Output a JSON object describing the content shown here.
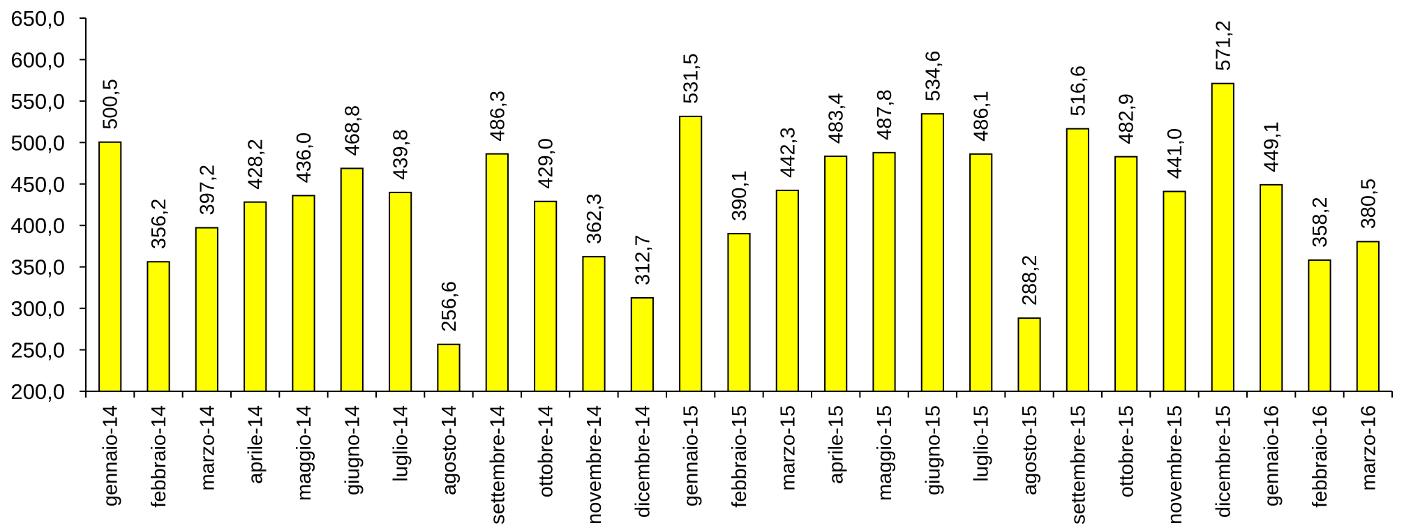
{
  "chart_data": {
    "type": "bar",
    "title": "",
    "xlabel": "",
    "ylabel": "",
    "ylim": [
      200,
      650
    ],
    "ytick_step": 50,
    "ytick_labels": [
      "200,0",
      "250,0",
      "300,0",
      "350,0",
      "400,0",
      "450,0",
      "500,0",
      "550,0",
      "600,0",
      "650,0"
    ],
    "grid": false,
    "legend": "none",
    "bar_color": "#ffff00",
    "bar_edge_color": "#000000",
    "categories": [
      "gennaio-14",
      "febbraio-14",
      "marzo-14",
      "aprile-14",
      "maggio-14",
      "giugno-14",
      "luglio-14",
      "agosto-14",
      "settembre-14",
      "ottobre-14",
      "novembre-14",
      "dicembre-14",
      "gennaio-15",
      "febbraio-15",
      "marzo-15",
      "aprile-15",
      "maggio-15",
      "giugno-15",
      "luglio-15",
      "agosto-15",
      "settembre-15",
      "ottobre-15",
      "novembre-15",
      "dicembre-15",
      "gennaio-16",
      "febbraio-16",
      "marzo-16"
    ],
    "values": [
      500.5,
      356.2,
      397.2,
      428.2,
      436.0,
      468.8,
      439.8,
      256.6,
      486.3,
      429.0,
      362.3,
      312.7,
      531.5,
      390.1,
      442.3,
      483.4,
      487.8,
      534.6,
      486.1,
      288.2,
      516.6,
      482.9,
      441.0,
      571.2,
      449.1,
      358.2,
      380.5
    ],
    "value_labels": [
      "500,5",
      "356,2",
      "397,2",
      "428,2",
      "436,0",
      "468,8",
      "439,8",
      "256,6",
      "486,3",
      "429,0",
      "362,3",
      "312,7",
      "531,5",
      "390,1",
      "442,3",
      "483,4",
      "487,8",
      "534,6",
      "486,1",
      "288,2",
      "516,6",
      "482,9",
      "441,0",
      "571,2",
      "449,1",
      "358,2",
      "380,5"
    ]
  }
}
